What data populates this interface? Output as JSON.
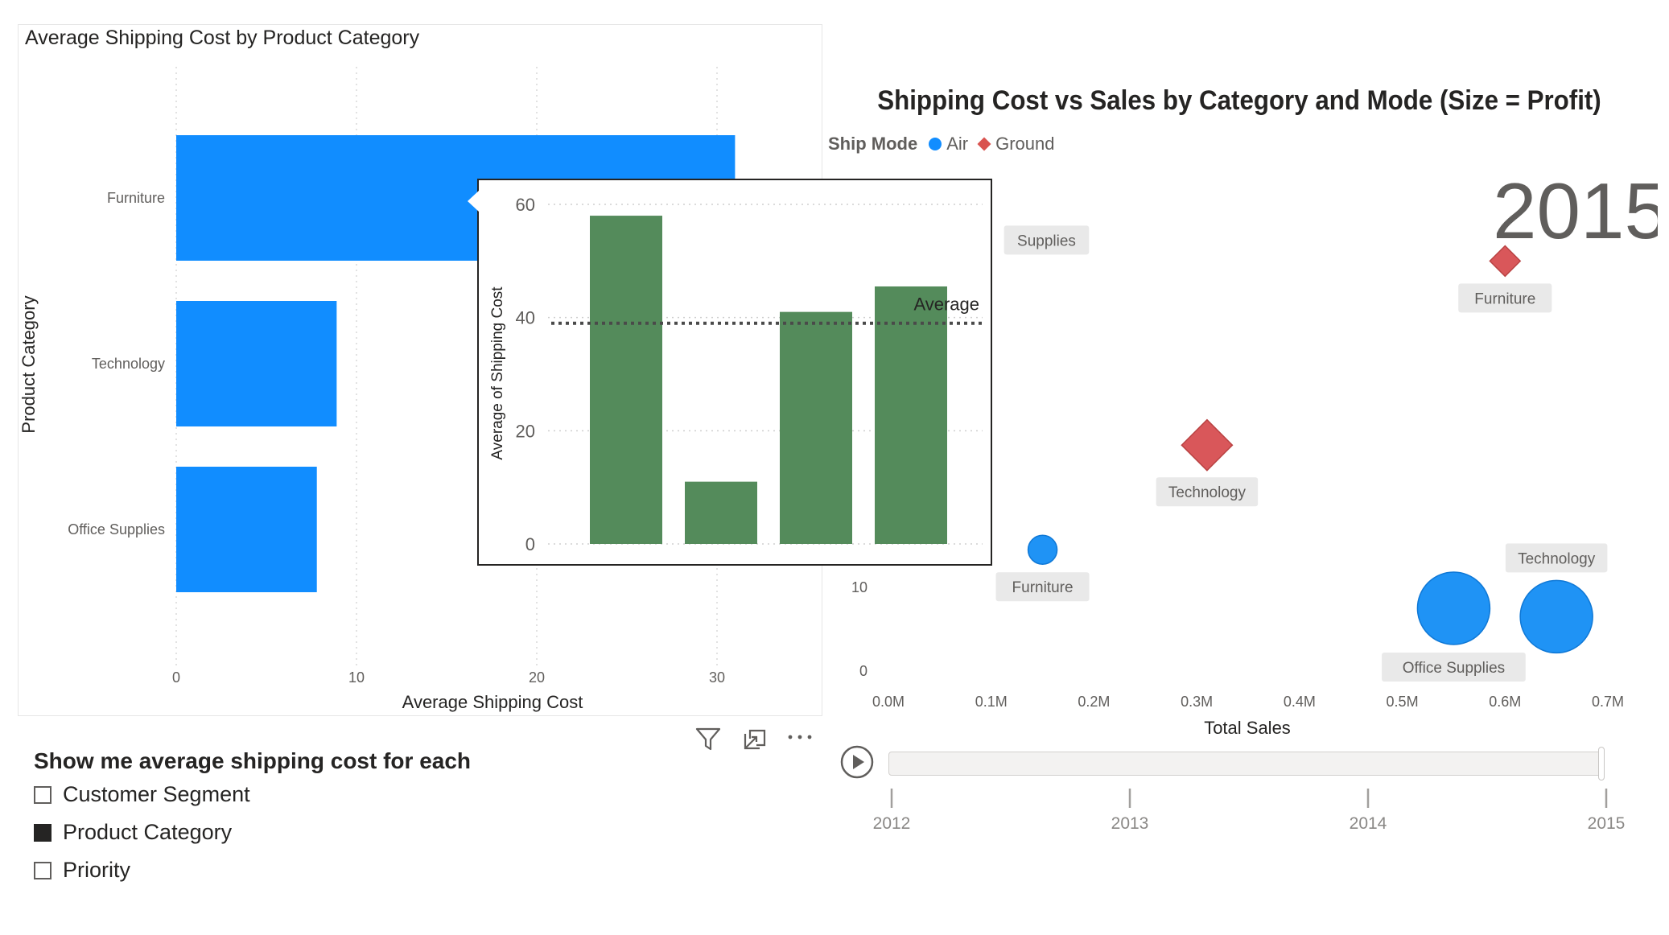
{
  "bar_chart": {
    "title": "Average Shipping Cost by Product Category",
    "x_title": "Average Shipping Cost",
    "y_title": "Product Category",
    "color": "#118DFF",
    "chart_data": {
      "type": "bar",
      "orientation": "horizontal",
      "categories": [
        "Furniture",
        "Technology",
        "Office Supplies"
      ],
      "values": [
        31,
        8.9,
        7.8
      ],
      "xlim": [
        0,
        35
      ],
      "x_ticks": [
        "0",
        "10",
        "20",
        "30"
      ],
      "grid": true
    }
  },
  "toolbar": {
    "filter_icon": "filter-icon",
    "focus_icon": "focus-mode-icon",
    "more_icon": "more-options-icon"
  },
  "tooltip_chart": {
    "y_title": "Average of Shipping Cost",
    "average_label": "Average",
    "color": "#548B5B",
    "chart_data": {
      "type": "bar",
      "values": [
        58,
        11,
        41,
        45.5
      ],
      "average": 39,
      "ylim": [
        0,
        60
      ],
      "y_ticks": [
        "0",
        "20",
        "40",
        "60"
      ],
      "grid": true
    }
  },
  "slicer": {
    "title": "Show me average shipping cost for each",
    "options": [
      {
        "label": "Customer Segment",
        "checked": false
      },
      {
        "label": "Product Category",
        "checked": true
      },
      {
        "label": "Priority",
        "checked": false
      }
    ]
  },
  "scatter_chart": {
    "title": "Shipping Cost vs Sales by Category and Mode (Size = Profit)",
    "legend_title": "Ship Mode",
    "legend": [
      {
        "name": "Air",
        "color": "#118DFF",
        "shape": "circle"
      },
      {
        "name": "Ground",
        "color": "#D9534F",
        "shape": "diamond"
      }
    ],
    "x_title": "Total Sales",
    "x_ticks": [
      "0.0M",
      "0.1M",
      "0.2M",
      "0.3M",
      "0.4M",
      "0.5M",
      "0.6M",
      "0.7M"
    ],
    "y_ticks": [
      "0",
      "10"
    ],
    "play_axis_value": "2015",
    "chart_data": {
      "type": "scatter",
      "x_unit": "M",
      "xlim": [
        0,
        0.7
      ],
      "ylim": [
        0,
        60
      ],
      "points": [
        {
          "label": "Furniture",
          "mode": "Ground",
          "x": 0.6,
          "y": 49,
          "size": "small"
        },
        {
          "label": "Supplies",
          "mode": "Ground",
          "x": 0.11,
          "y": 51.5,
          "size": "hidden"
        },
        {
          "label": "Technology",
          "mode": "Ground",
          "x": 0.31,
          "y": 27,
          "size": "medium"
        },
        {
          "label": "Furniture",
          "mode": "Air",
          "x": 0.15,
          "y": 14.5,
          "size": "small"
        },
        {
          "label": "Office Supplies",
          "mode": "Air",
          "x": 0.55,
          "y": 7.5,
          "size": "large"
        },
        {
          "label": "Technology",
          "mode": "Air",
          "x": 0.65,
          "y": 6.5,
          "size": "large"
        }
      ]
    }
  },
  "play_axis": {
    "play_icon": "play-icon",
    "years": [
      "2012",
      "2013",
      "2014",
      "2015"
    ],
    "current": "2015"
  }
}
